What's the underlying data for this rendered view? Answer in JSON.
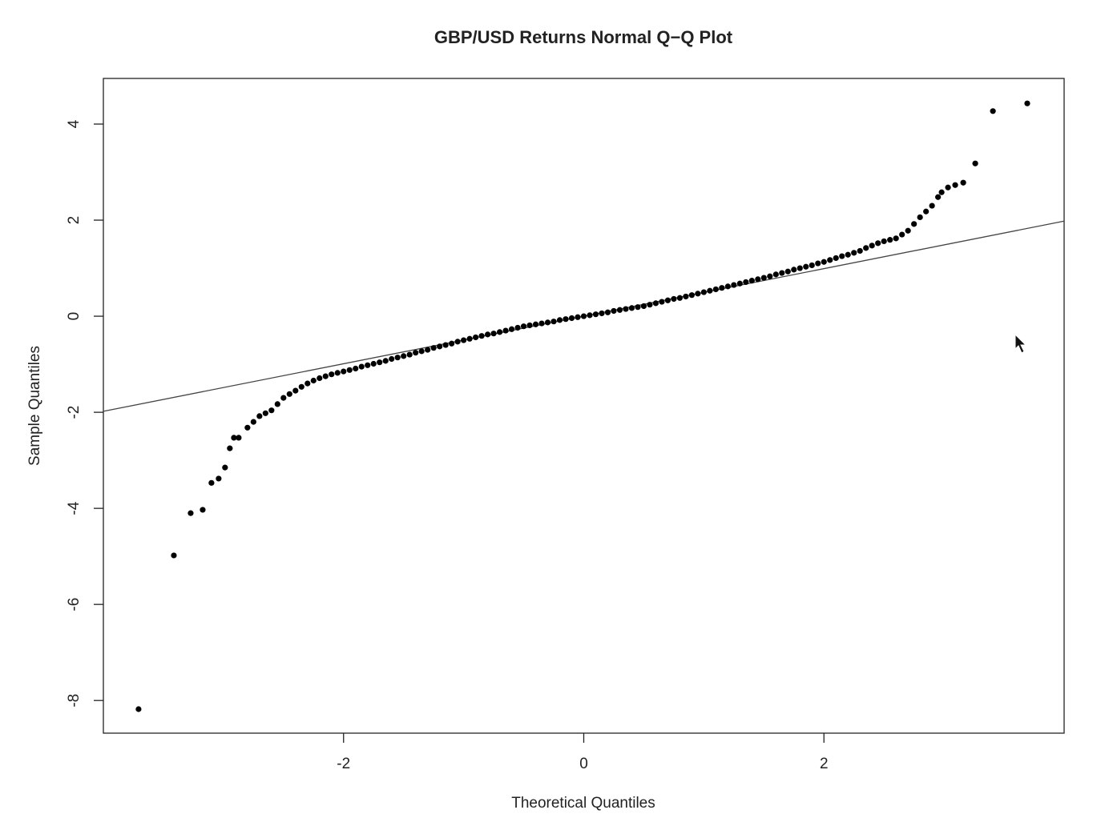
{
  "chart_data": {
    "type": "scatter",
    "title": "GBP/USD Returns Normal Q−Q Plot",
    "x_label": "Theoretical Quantiles",
    "y_label": "Sample Quantiles",
    "xlim": [
      -4,
      4
    ],
    "ylim": [
      -8.68,
      4.95
    ],
    "xticks": [
      -2,
      0,
      2
    ],
    "yticks": [
      -8,
      -6,
      -4,
      -2,
      0,
      2,
      4
    ],
    "color": "#000000",
    "reference_line": {
      "intercept": 0,
      "slope": 0.495
    },
    "x": [
      -3.707,
      -3.413,
      -3.273,
      -3.173,
      -3.1,
      -3.04,
      -2.987,
      -2.947,
      -2.913,
      -2.873,
      -2.8,
      -2.75,
      -2.7,
      -2.65,
      -2.6,
      -2.55,
      -2.5,
      -2.45,
      -2.4,
      -2.35,
      -2.3,
      -2.25,
      -2.2,
      -2.15,
      -2.1,
      -2.05,
      -2.0,
      -1.95,
      -1.9,
      -1.85,
      -1.8,
      -1.75,
      -1.7,
      -1.65,
      -1.6,
      -1.55,
      -1.5,
      -1.45,
      -1.4,
      -1.35,
      -1.3,
      -1.25,
      -1.2,
      -1.15,
      -1.1,
      -1.05,
      -1.0,
      -0.95,
      -0.9,
      -0.85,
      -0.8,
      -0.75,
      -0.7,
      -0.65,
      -0.6,
      -0.55,
      -0.5,
      -0.45,
      -0.4,
      -0.35,
      -0.3,
      -0.25,
      -0.2,
      -0.15,
      -0.1,
      -0.05,
      0,
      0.05,
      0.1,
      0.15,
      0.2,
      0.25,
      0.3,
      0.35,
      0.4,
      0.45,
      0.5,
      0.55,
      0.6,
      0.65,
      0.7,
      0.75,
      0.8,
      0.85,
      0.9,
      0.95,
      1.0,
      1.05,
      1.1,
      1.15,
      1.2,
      1.25,
      1.3,
      1.35,
      1.4,
      1.45,
      1.5,
      1.55,
      1.6,
      1.65,
      1.7,
      1.75,
      1.8,
      1.85,
      1.9,
      1.95,
      2.0,
      2.05,
      2.1,
      2.15,
      2.2,
      2.25,
      2.3,
      2.35,
      2.4,
      2.45,
      2.5,
      2.55,
      2.6,
      2.65,
      2.7,
      2.75,
      2.8,
      2.85,
      2.9,
      2.95,
      2.98,
      3.033,
      3.093,
      3.16,
      3.26,
      3.407,
      3.693
    ],
    "values": [
      -8.18,
      -4.98,
      -4.1,
      -4.03,
      -3.47,
      -3.38,
      -3.15,
      -2.75,
      -2.53,
      -2.53,
      -2.32,
      -2.2,
      -2.08,
      -2.02,
      -1.96,
      -1.83,
      -1.7,
      -1.62,
      -1.55,
      -1.47,
      -1.4,
      -1.34,
      -1.29,
      -1.25,
      -1.21,
      -1.18,
      -1.15,
      -1.12,
      -1.09,
      -1.05,
      -1.02,
      -0.99,
      -0.96,
      -0.93,
      -0.89,
      -0.86,
      -0.83,
      -0.8,
      -0.76,
      -0.73,
      -0.7,
      -0.66,
      -0.63,
      -0.6,
      -0.57,
      -0.53,
      -0.5,
      -0.47,
      -0.44,
      -0.41,
      -0.38,
      -0.36,
      -0.33,
      -0.3,
      -0.27,
      -0.24,
      -0.21,
      -0.19,
      -0.17,
      -0.15,
      -0.13,
      -0.11,
      -0.08,
      -0.06,
      -0.04,
      -0.02,
      0,
      0.02,
      0.04,
      0.06,
      0.08,
      0.11,
      0.13,
      0.15,
      0.17,
      0.19,
      0.21,
      0.24,
      0.27,
      0.3,
      0.33,
      0.36,
      0.38,
      0.41,
      0.44,
      0.47,
      0.5,
      0.53,
      0.56,
      0.59,
      0.62,
      0.65,
      0.68,
      0.71,
      0.74,
      0.77,
      0.8,
      0.83,
      0.87,
      0.9,
      0.93,
      0.97,
      1.0,
      1.03,
      1.06,
      1.1,
      1.13,
      1.17,
      1.21,
      1.25,
      1.28,
      1.32,
      1.36,
      1.42,
      1.47,
      1.52,
      1.56,
      1.59,
      1.62,
      1.7,
      1.78,
      1.92,
      2.06,
      2.18,
      2.3,
      2.48,
      2.58,
      2.68,
      2.73,
      2.78,
      3.18,
      4.27,
      4.43
    ]
  }
}
